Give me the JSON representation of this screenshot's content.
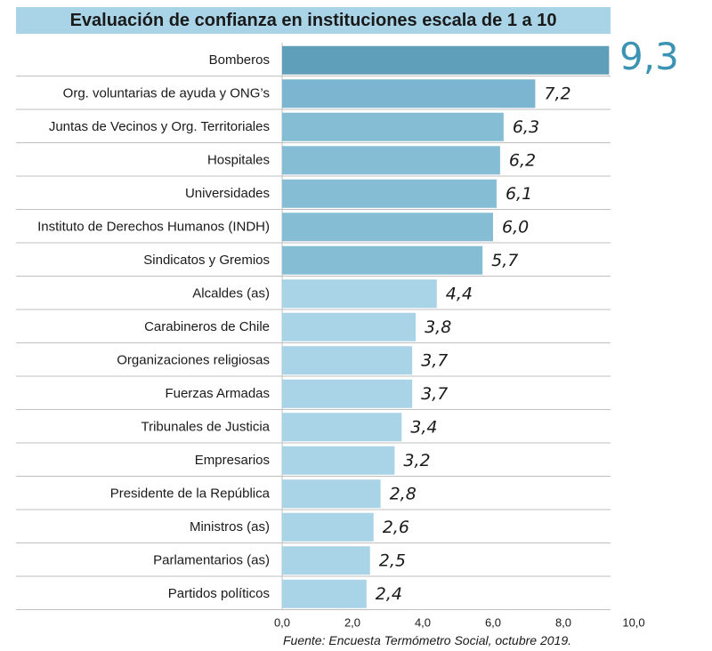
{
  "chart_data": {
    "type": "bar",
    "orientation": "horizontal",
    "title": "Evaluación de confianza en instituciones escala de 1 a 10",
    "categories": [
      "Bomberos",
      "Org. voluntarias de ayuda y ONG’s",
      "Juntas de Vecinos y Org. Territoriales",
      "Hospitales",
      "Universidades",
      "Instituto de Derechos Humanos (INDH)",
      "Sindicatos y Gremios",
      "Alcaldes (as)",
      "Carabineros de Chile",
      "Organizaciones religiosas",
      "Fuerzas Armadas",
      "Tribunales de Justicia",
      "Empresarios",
      "Presidente de la República",
      "Ministros (as)",
      "Parlamentarios (as)",
      "Partidos políticos"
    ],
    "values": [
      9.3,
      7.2,
      6.3,
      6.2,
      6.1,
      6.0,
      5.7,
      4.4,
      3.8,
      3.7,
      3.7,
      3.4,
      3.2,
      2.8,
      2.6,
      2.5,
      2.4
    ],
    "value_labels": [
      "9,3",
      "7,2",
      "6,3",
      "6,2",
      "6,1",
      "6,0",
      "5,7",
      "4,4",
      "3,8",
      "3,7",
      "3,7",
      "3,4",
      "3,2",
      "2,8",
      "2,6",
      "2,5",
      "2,4"
    ],
    "xlim": [
      0,
      10
    ],
    "xticks": [
      "0,0",
      "2,0",
      "4,0",
      "6,0",
      "8,0",
      "10,0"
    ],
    "xlabel": "",
    "ylabel": "",
    "grid": true,
    "colors": {
      "title_bar": "#a9d3e6",
      "bar_dark": "#5b9fba",
      "bar_light": "#a9d3e6",
      "big_value": "#3c93b4",
      "grid": "#bfbfbf"
    }
  },
  "source": "Fuente: Encuesta Termómetro Social, octubre 2019."
}
